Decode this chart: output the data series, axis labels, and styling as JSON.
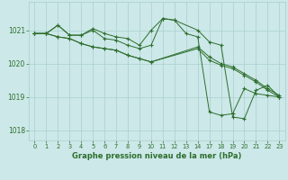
{
  "background_color": "#cce8e8",
  "grid_color": "#aacfcf",
  "line_color": "#2d6e2d",
  "xlabel": "Graphe pression niveau de la mer (hPa)",
  "ylim": [
    1017.7,
    1021.85
  ],
  "yticks": [
    1018,
    1019,
    1020,
    1021
  ],
  "xtick_labels": [
    "0",
    "1",
    "2",
    "3",
    "4",
    "5",
    "6",
    "7",
    "8",
    "9",
    "10",
    "11",
    "12",
    "13",
    "14",
    "17",
    "18",
    "19",
    "20",
    "21",
    "22",
    "23"
  ],
  "lines": [
    {
      "xi": [
        0,
        1,
        2,
        3,
        4,
        5,
        6,
        7,
        8,
        9,
        10,
        11,
        12,
        13,
        14,
        15,
        16,
        17,
        18,
        19,
        20,
        21
      ],
      "y": [
        1020.9,
        1020.9,
        1021.15,
        1020.85,
        1020.85,
        1021.05,
        1020.9,
        1020.8,
        1020.75,
        1020.55,
        1021.0,
        1021.35,
        1021.3,
        1020.9,
        1020.8,
        1018.55,
        1018.45,
        1018.5,
        1019.25,
        1019.1,
        1019.05,
        1019.0
      ]
    },
    {
      "xi": [
        0,
        1,
        2,
        3,
        4,
        5,
        6,
        7,
        8,
        9,
        10,
        11,
        12,
        14,
        15,
        16,
        17,
        18,
        19,
        20,
        21
      ],
      "y": [
        1020.9,
        1020.9,
        1021.15,
        1020.85,
        1020.85,
        1021.0,
        1020.75,
        1020.7,
        1020.55,
        1020.45,
        1020.55,
        1021.35,
        1021.3,
        1021.0,
        1020.65,
        1020.55,
        1018.4,
        1018.35,
        1019.2,
        1019.35,
        1019.0
      ]
    },
    {
      "xi": [
        0,
        1,
        2,
        3,
        4,
        5,
        6,
        7,
        8,
        9,
        10,
        14,
        15,
        16,
        17,
        18,
        19,
        20,
        21
      ],
      "y": [
        1020.9,
        1020.9,
        1020.8,
        1020.75,
        1020.6,
        1020.5,
        1020.45,
        1020.4,
        1020.25,
        1020.15,
        1020.05,
        1020.45,
        1020.1,
        1019.95,
        1019.85,
        1019.65,
        1019.45,
        1019.2,
        1019.0
      ]
    },
    {
      "xi": [
        0,
        1,
        2,
        3,
        4,
        5,
        6,
        7,
        8,
        9,
        10,
        14,
        15,
        16,
        17,
        18,
        19,
        20,
        21
      ],
      "y": [
        1020.9,
        1020.9,
        1020.8,
        1020.75,
        1020.6,
        1020.5,
        1020.45,
        1020.4,
        1020.25,
        1020.15,
        1020.05,
        1020.5,
        1020.2,
        1020.0,
        1019.9,
        1019.7,
        1019.5,
        1019.25,
        1019.05
      ]
    }
  ]
}
